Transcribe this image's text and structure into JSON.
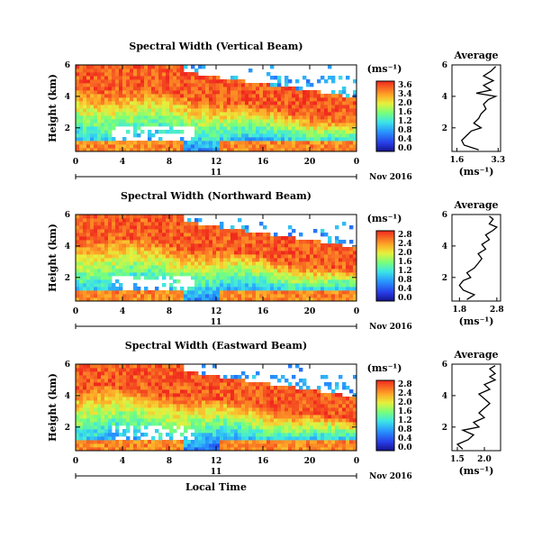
{
  "chart_data": [
    {
      "type": "heatmap",
      "title": "Spectral Width (Vertical Beam)",
      "ylabel": "Height (km)",
      "xlabel": "",
      "x_ticks": [
        "0",
        "4",
        "8",
        "12",
        "16",
        "20",
        "0"
      ],
      "y_ticks": [
        "2",
        "4",
        "6"
      ],
      "xlim": [
        0,
        24
      ],
      "ylim": [
        0.5,
        6
      ],
      "date_label": "11",
      "date_suffix": "Nov 2016",
      "colorbar": {
        "label": "(ms⁻¹)",
        "ticks": [
          "3.6",
          "3.4",
          "2.0",
          "1.6",
          "1.2",
          "0.8",
          "0.4",
          "0.0"
        ],
        "range": [
          0,
          3.6
        ]
      },
      "average": {
        "title": "Average",
        "xlabel": "(ms⁻¹)",
        "x_ticks": [
          "1.6",
          "3.3"
        ],
        "xlim": [
          1.4,
          3.4
        ],
        "y_ticks": [
          "2",
          "4",
          "6"
        ],
        "heights": [
          0.6,
          0.9,
          1.2,
          1.5,
          1.8,
          2.0,
          2.3,
          2.6,
          2.9,
          3.2,
          3.5,
          3.8,
          4.0,
          4.2,
          4.4,
          4.7,
          5.0,
          5.3,
          5.6,
          5.9
        ],
        "values": [
          2.5,
          1.9,
          1.8,
          2.0,
          2.2,
          2.6,
          2.3,
          2.5,
          2.6,
          2.8,
          2.7,
          2.9,
          3.2,
          2.4,
          3.0,
          2.7,
          3.1,
          2.7,
          3.0,
          3.2
        ]
      }
    },
    {
      "type": "heatmap",
      "title": "Spectral Width (Northward Beam)",
      "ylabel": "Height (km)",
      "xlabel": "",
      "x_ticks": [
        "0",
        "4",
        "8",
        "12",
        "16",
        "20",
        "0"
      ],
      "y_ticks": [
        "2",
        "4",
        "6"
      ],
      "xlim": [
        0,
        24
      ],
      "ylim": [
        0.5,
        6
      ],
      "date_label": "11",
      "date_suffix": "Nov 2016",
      "colorbar": {
        "label": "(ms⁻¹)",
        "ticks": [
          "2.8",
          "2.4",
          "2.0",
          "1.6",
          "1.2",
          "0.8",
          "0.4",
          "0.0"
        ],
        "range": [
          0,
          2.8
        ]
      },
      "average": {
        "title": "Average",
        "xlabel": "(ms⁻¹)",
        "x_ticks": [
          "1.8",
          "2.8"
        ],
        "xlim": [
          1.6,
          2.9
        ],
        "y_ticks": [
          "2",
          "4",
          "6"
        ],
        "heights": [
          0.6,
          0.9,
          1.2,
          1.5,
          1.8,
          2.0,
          2.3,
          2.6,
          2.9,
          3.2,
          3.5,
          3.8,
          4.1,
          4.4,
          4.7,
          5.0,
          5.2,
          5.4,
          5.7,
          5.9
        ],
        "values": [
          2.0,
          2.2,
          1.9,
          1.8,
          1.9,
          2.1,
          2.0,
          2.2,
          2.3,
          2.4,
          2.3,
          2.5,
          2.4,
          2.6,
          2.5,
          2.7,
          2.8,
          2.6,
          2.7,
          2.6
        ]
      }
    },
    {
      "type": "heatmap",
      "title": "Spectral Width (Eastward Beam)",
      "ylabel": "Height (km)",
      "xlabel": "Local Time",
      "x_ticks": [
        "0",
        "4",
        "8",
        "12",
        "16",
        "20",
        "0"
      ],
      "y_ticks": [
        "2",
        "4",
        "6"
      ],
      "xlim": [
        0,
        24
      ],
      "ylim": [
        0.5,
        6
      ],
      "date_label": "11",
      "date_suffix": "Nov 2016",
      "colorbar": {
        "label": "(ms⁻¹)",
        "ticks": [
          "2.8",
          "2.4",
          "2.0",
          "1.6",
          "1.2",
          "0.8",
          "0.4",
          "0.0"
        ],
        "range": [
          0,
          2.8
        ]
      },
      "average": {
        "title": "Average",
        "xlabel": "(ms⁻¹)",
        "x_ticks": [
          "1.5",
          "2.0"
        ],
        "xlim": [
          1.4,
          2.3
        ],
        "y_ticks": [
          "2",
          "4",
          "6"
        ],
        "heights": [
          0.6,
          0.9,
          1.2,
          1.5,
          1.8,
          2.0,
          2.3,
          2.6,
          2.9,
          3.2,
          3.5,
          3.8,
          4.1,
          4.4,
          4.7,
          5.0,
          5.2,
          5.4,
          5.7,
          5.9
        ],
        "values": [
          1.6,
          1.5,
          1.7,
          1.8,
          1.6,
          1.9,
          1.8,
          2.0,
          1.9,
          2.0,
          2.1,
          2.0,
          1.9,
          2.1,
          2.0,
          2.2,
          2.1,
          2.2,
          2.1,
          2.2
        ]
      }
    }
  ]
}
